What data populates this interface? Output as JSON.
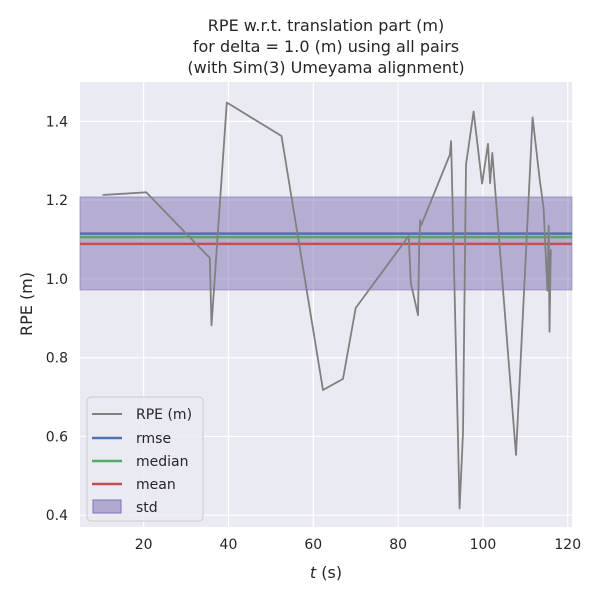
{
  "chart_data": {
    "type": "line",
    "title_lines": [
      "RPE w.r.t. translation part (m)",
      "for delta = 1.0 (m) using all pairs",
      "(with Sim(3) Umeyama alignment)"
    ],
    "xlabel_italic": "t",
    "xlabel_rest": " (s)",
    "ylabel": "RPE (m)",
    "xlim": [
      5,
      121
    ],
    "ylim": [
      0.37,
      1.5
    ],
    "x_ticks": [
      20,
      40,
      60,
      80,
      100,
      120
    ],
    "y_ticks": [
      0.4,
      0.6,
      0.8,
      1.0,
      1.2,
      1.4
    ],
    "x_tick_labels": [
      "20",
      "40",
      "60",
      "80",
      "100",
      "120"
    ],
    "y_tick_labels": [
      "0.4",
      "0.6",
      "0.8",
      "1.0",
      "1.2",
      "1.4"
    ],
    "grid": true,
    "legend_position": "lower-left",
    "series": [
      {
        "name": "RPE (m)",
        "color": "#808080",
        "x": [
          10.3,
          20.6,
          35.6,
          36.0,
          39.6,
          52.5,
          62.3,
          67.0,
          70.0,
          82.5,
          83.0,
          84.7,
          85.0,
          85.2,
          85.4,
          92.2,
          92.5,
          94.5,
          95.3,
          96.0,
          97.8,
          99.8,
          101.2,
          101.7,
          102.2,
          107.8,
          111.7,
          113.4,
          114.3,
          115.2,
          115.5,
          115.7,
          116.0
        ],
        "y": [
          1.213,
          1.22,
          1.053,
          0.882,
          1.448,
          1.363,
          0.718,
          0.746,
          0.926,
          1.109,
          0.99,
          0.908,
          1.098,
          1.149,
          1.135,
          1.315,
          1.35,
          0.417,
          0.61,
          1.29,
          1.425,
          1.242,
          1.343,
          1.243,
          1.32,
          0.553,
          1.41,
          1.25,
          1.18,
          0.97,
          1.135,
          0.866,
          1.075
        ]
      }
    ],
    "stats": {
      "rmse": {
        "name": "rmse",
        "value": 1.115,
        "color": "#4c72b0"
      },
      "median": {
        "name": "median",
        "value": 1.106,
        "color": "#55a868"
      },
      "mean": {
        "name": "mean",
        "value": 1.089,
        "color": "#c44e52"
      },
      "std": {
        "name": "std",
        "lower": 0.972,
        "upper": 1.208,
        "color": "#8172b2"
      }
    },
    "colors": {
      "background": "#eaeaf2",
      "grid": "#ffffff"
    }
  }
}
